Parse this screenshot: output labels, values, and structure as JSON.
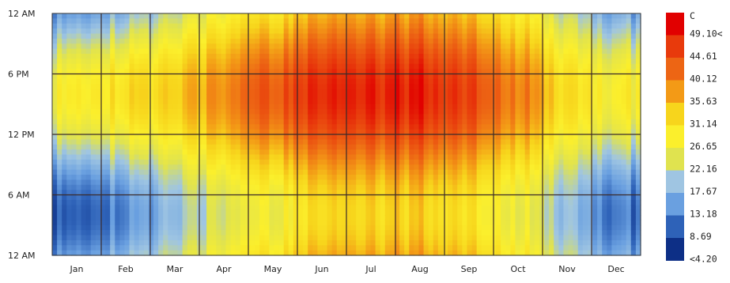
{
  "chart_data": {
    "type": "heatmap",
    "title": "",
    "xlabel": "",
    "ylabel": "",
    "x_tick_labels": [
      "Jan",
      "Feb",
      "Mar",
      "Apr",
      "May",
      "Jun",
      "Jul",
      "Aug",
      "Sep",
      "Oct",
      "Nov",
      "Dec"
    ],
    "y_tick_labels": [
      "12 AM",
      "6 PM",
      "12 PM",
      "6 AM",
      "12 AM"
    ],
    "color_scale": {
      "unit": "C",
      "labels": [
        "49.10<",
        "44.61",
        "40.12",
        "35.63",
        "31.14",
        "26.65",
        "22.16",
        "17.67",
        "13.18",
        "8.69",
        "<4.20"
      ],
      "colors": [
        "#e10000",
        "#e83a0c",
        "#ed6514",
        "#f39a16",
        "#f7d51c",
        "#fbef2c",
        "#e0e34f",
        "#9fc5e2",
        "#6aa0e0",
        "#2e62b8",
        "#0d2f86"
      ],
      "min": 4.2,
      "max": 49.1
    },
    "month_profile_estimates": {
      "description_hidden": true,
      "months": [
        "Jan",
        "Feb",
        "Mar",
        "Apr",
        "May",
        "Jun",
        "Jul",
        "Aug",
        "Sep",
        "Oct",
        "Nov",
        "Dec"
      ],
      "night_min": [
        8,
        11,
        17,
        22,
        25,
        30,
        31,
        31,
        28,
        24,
        17,
        10
      ],
      "afternoon_max": [
        27,
        29,
        32,
        37,
        42,
        46,
        47,
        47,
        43,
        38,
        30,
        26
      ]
    }
  }
}
